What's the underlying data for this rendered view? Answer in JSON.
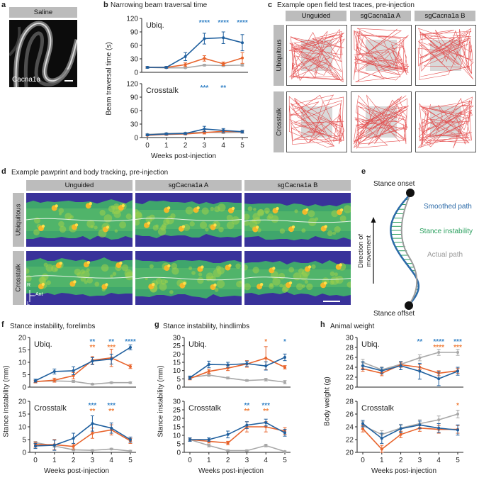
{
  "figure": {
    "panel_a": {
      "letter": "a",
      "header": "Saline",
      "image_label": "Cacna1a"
    },
    "panel_b": {
      "letter": "b",
      "title": "Narrowing beam traversal time",
      "ylabel": "Beam traversal time (s)",
      "xlabel": "Weeks post-injection"
    },
    "panel_c": {
      "letter": "c",
      "title": "Example open field test traces, pre-injection",
      "columns": [
        "Unguided",
        "sgCacna1a A",
        "sgCacna1a B"
      ],
      "rows": [
        "Ubiquitous",
        "Crosstalk"
      ]
    },
    "panel_d": {
      "letter": "d",
      "title": "Example pawprint and body tracking, pre-injection",
      "columns": [
        "Unguided",
        "sgCacna1a A",
        "sgCacna1a B"
      ],
      "rows": [
        "Ubiquitous",
        "Crosstalk"
      ],
      "compass": {
        "r": "R",
        "ant": "Ant",
        "l": "L"
      }
    },
    "panel_e": {
      "letter": "e",
      "stance_onset": "Stance onset",
      "smoothed_path": "Smoothed path",
      "stance_instability": "Stance instability",
      "actual_path": "Actual path",
      "stance_offset": "Stance offset",
      "direction": "Direction of movement"
    },
    "panel_f": {
      "letter": "f",
      "title": "Stance instability, forelimbs",
      "ylabel": "Stance instability (mm)",
      "xlabel": "Weeks post-injection"
    },
    "panel_g": {
      "letter": "g",
      "title": "Stance instability, hindlimbs",
      "ylabel": "Stance instability (mm)",
      "xlabel": "Weeks post-injection"
    },
    "panel_h": {
      "letter": "h",
      "title": "Animal weight",
      "ylabel": "Body weight (g)",
      "xlabel": "Weeks post-injection"
    }
  },
  "colors": {
    "blue": "#1f5f9e",
    "orange": "#e8632b",
    "gray": "#a8a8a8",
    "sig_blue": "#3a86c8",
    "sig_orange": "#f07f3c"
  },
  "chart_data": [
    {
      "id": "b_top",
      "type": "line",
      "subtitle": "Ubiq.",
      "x": [
        0,
        1,
        2,
        3,
        4,
        5
      ],
      "ylim": [
        0,
        120
      ],
      "yticks": [
        0,
        30,
        60,
        90,
        120
      ],
      "series": [
        {
          "name": "sgCacna1a A",
          "color": "blue",
          "values": [
            11,
            11,
            35,
            75,
            77,
            66
          ],
          "err": [
            2,
            2,
            9,
            12,
            13,
            18
          ]
        },
        {
          "name": "sgCacna1a B",
          "color": "orange",
          "values": [
            11,
            11,
            17,
            31,
            19,
            32
          ],
          "err": [
            1,
            2,
            4,
            6,
            4,
            12
          ]
        },
        {
          "name": "Unguided",
          "color": "gray",
          "values": [
            11,
            10,
            10,
            16,
            15,
            16
          ],
          "err": [
            1,
            1,
            1,
            2,
            2,
            2
          ]
        }
      ],
      "sig": [
        {
          "x": 3,
          "text": "****",
          "color": "sig_blue"
        },
        {
          "x": 4,
          "text": "****",
          "color": "sig_blue"
        },
        {
          "x": 5,
          "text": "****",
          "color": "sig_blue"
        }
      ]
    },
    {
      "id": "b_bottom",
      "type": "line",
      "subtitle": "Crosstalk",
      "x": [
        0,
        1,
        2,
        3,
        4,
        5
      ],
      "ylim": [
        0,
        120
      ],
      "yticks": [
        0,
        30,
        60,
        90,
        120
      ],
      "series": [
        {
          "name": "sgCacna1a A",
          "color": "blue",
          "values": [
            6,
            8,
            9,
            19,
            16,
            13
          ],
          "err": [
            2,
            2,
            2,
            6,
            4,
            3
          ]
        },
        {
          "name": "sgCacna1a B",
          "color": "orange",
          "values": [
            5,
            7,
            8,
            11,
            14,
            13
          ],
          "err": [
            1,
            2,
            2,
            3,
            3,
            3
          ]
        },
        {
          "name": "Unguided",
          "color": "gray",
          "values": [
            7,
            9,
            10,
            12,
            11,
            12
          ],
          "err": [
            1,
            1,
            1,
            2,
            2,
            2
          ]
        }
      ],
      "sig": [
        {
          "x": 3,
          "text": "***",
          "color": "sig_blue"
        },
        {
          "x": 4,
          "text": "**",
          "color": "sig_blue"
        }
      ]
    },
    {
      "id": "f_top",
      "type": "line",
      "subtitle": "Ubiq.",
      "x": [
        0,
        1,
        2,
        3,
        4,
        5
      ],
      "ylim": [
        0,
        20
      ],
      "yticks": [
        0,
        5,
        10,
        15,
        20
      ],
      "series": [
        {
          "name": "sgCacna1a A",
          "color": "blue",
          "values": [
            2.6,
            6.3,
            6.6,
            10.5,
            11.3,
            16
          ],
          "err": [
            0.6,
            1,
            1.6,
            1.4,
            2,
            1
          ]
        },
        {
          "name": "sgCacna1a B",
          "color": "orange",
          "values": [
            2.2,
            2.8,
            4.6,
            10.8,
            11.8,
            8.3
          ],
          "err": [
            0.5,
            0.8,
            1.3,
            1.5,
            3.5,
            0.8
          ]
        },
        {
          "name": "Unguided",
          "color": "gray",
          "values": [
            2.3,
            2.5,
            2.3,
            1.2,
            1.8,
            1.8
          ],
          "err": [
            0.4,
            0.4,
            0.4,
            0.3,
            0.3,
            0.3
          ]
        }
      ],
      "sig": [
        {
          "x": 3,
          "text": "**",
          "color": "sig_blue"
        },
        {
          "x": 3,
          "text": "**",
          "color": "sig_orange"
        },
        {
          "x": 4,
          "text": "**",
          "color": "sig_blue"
        },
        {
          "x": 4,
          "text": "***",
          "color": "sig_orange"
        },
        {
          "x": 5,
          "text": "****",
          "color": "sig_blue"
        }
      ]
    },
    {
      "id": "f_bottom",
      "type": "line",
      "subtitle": "Crosstalk",
      "x": [
        0,
        1,
        2,
        3,
        4,
        5
      ],
      "ylim": [
        0,
        20
      ],
      "yticks": [
        0,
        5,
        10,
        15,
        20
      ],
      "series": [
        {
          "name": "sgCacna1a A",
          "color": "blue",
          "values": [
            2.5,
            2.8,
            5.5,
            11.3,
            9.5,
            5
          ],
          "err": [
            1,
            2,
            2,
            3,
            2,
            1
          ]
        },
        {
          "name": "sgCacna1a B",
          "color": "orange",
          "values": [
            3,
            3,
            2.3,
            7.5,
            8.8,
            4.5
          ],
          "err": [
            1,
            2,
            1,
            2,
            2,
            1
          ]
        },
        {
          "name": "Unguided",
          "color": "gray",
          "values": [
            3.8,
            2.5,
            1,
            0.8,
            1.3,
            0.5
          ],
          "err": [
            0.5,
            0.5,
            0.4,
            0.3,
            0.3,
            0.3
          ]
        }
      ],
      "sig": [
        {
          "x": 3,
          "text": "***",
          "color": "sig_blue"
        },
        {
          "x": 3,
          "text": "**",
          "color": "sig_orange"
        },
        {
          "x": 4,
          "text": "***",
          "color": "sig_blue"
        },
        {
          "x": 4,
          "text": "**",
          "color": "sig_orange"
        }
      ]
    },
    {
      "id": "g_top",
      "type": "line",
      "subtitle": "Ubiq.",
      "x": [
        0,
        1,
        2,
        3,
        4,
        5
      ],
      "ylim": [
        0,
        30
      ],
      "yticks": [
        0,
        5,
        10,
        15,
        20,
        25,
        30
      ],
      "series": [
        {
          "name": "sgCacna1a A",
          "color": "blue",
          "values": [
            5.7,
            13.7,
            13.5,
            14.2,
            12.8,
            18
          ],
          "err": [
            1,
            2,
            1.5,
            1.5,
            2.5,
            2
          ]
        },
        {
          "name": "sgCacna1a B",
          "color": "orange",
          "values": [
            5.2,
            9.5,
            11.5,
            14,
            17.5,
            12
          ],
          "err": [
            0.8,
            1.2,
            1.5,
            2,
            7,
            1
          ]
        },
        {
          "name": "Unguided",
          "color": "gray",
          "values": [
            5.8,
            7.3,
            5.5,
            4,
            4.5,
            3
          ],
          "err": [
            0.6,
            0.8,
            0.6,
            0.5,
            0.8,
            1
          ]
        }
      ],
      "sig": [
        {
          "x": 4,
          "text": "*",
          "color": "sig_orange"
        },
        {
          "x": 5,
          "text": "*",
          "color": "sig_blue"
        }
      ]
    },
    {
      "id": "g_bottom",
      "type": "line",
      "subtitle": "Crosstalk",
      "x": [
        0,
        1,
        2,
        3,
        4,
        5
      ],
      "ylim": [
        0,
        30
      ],
      "yticks": [
        0,
        5,
        10,
        15,
        20,
        25,
        30
      ],
      "series": [
        {
          "name": "sgCacna1a A",
          "color": "blue",
          "values": [
            7.5,
            7.5,
            10.5,
            16,
            17.5,
            11.5
          ],
          "err": [
            1,
            1,
            2,
            2,
            2,
            2
          ]
        },
        {
          "name": "sgCacna1a B",
          "color": "orange",
          "values": [
            7.5,
            6.5,
            5.5,
            15,
            15,
            12.5
          ],
          "err": [
            1,
            1,
            1,
            3,
            3,
            2
          ]
        },
        {
          "name": "Unguided",
          "color": "gray",
          "values": [
            7.5,
            4,
            1,
            1,
            4,
            0.5
          ],
          "err": [
            0.8,
            0.8,
            0.5,
            0.5,
            0.8,
            0.3
          ]
        }
      ],
      "sig": [
        {
          "x": 3,
          "text": "**",
          "color": "sig_blue"
        },
        {
          "x": 3,
          "text": "**",
          "color": "sig_orange"
        },
        {
          "x": 4,
          "text": "***",
          "color": "sig_blue"
        },
        {
          "x": 4,
          "text": "**",
          "color": "sig_orange"
        }
      ]
    },
    {
      "id": "h_top",
      "type": "line",
      "subtitle": "Ubiq.",
      "x": [
        0,
        1,
        2,
        3,
        4,
        5
      ],
      "ylim": [
        20,
        30
      ],
      "yticks": [
        20,
        22,
        24,
        26,
        28,
        30
      ],
      "series": [
        {
          "name": "sgCacna1a A",
          "color": "blue",
          "values": [
            24.3,
            23.3,
            24.3,
            23.2,
            21.7,
            23.2
          ],
          "err": [
            0.8,
            0.6,
            0.8,
            1.6,
            1.4,
            0.8
          ]
        },
        {
          "name": "sgCacna1a B",
          "color": "orange",
          "values": [
            23.7,
            22.8,
            24.5,
            24,
            22.8,
            23.3
          ],
          "err": [
            0.5,
            0.5,
            0.5,
            0.5,
            0.5,
            0.5
          ]
        },
        {
          "name": "Unguided",
          "color": "gray",
          "values": [
            25,
            23.5,
            24.6,
            25.9,
            27,
            27
          ],
          "err": [
            0.6,
            0.6,
            0.6,
            0.6,
            0.6,
            0.6
          ]
        }
      ],
      "sig": [
        {
          "x": 3,
          "text": "**",
          "color": "sig_blue"
        },
        {
          "x": 4,
          "text": "****",
          "color": "sig_blue"
        },
        {
          "x": 4,
          "text": "****",
          "color": "sig_orange"
        },
        {
          "x": 5,
          "text": "***",
          "color": "sig_blue"
        },
        {
          "x": 5,
          "text": "***",
          "color": "sig_orange"
        }
      ]
    },
    {
      "id": "h_bottom",
      "type": "line",
      "subtitle": "Crosstalk",
      "x": [
        0,
        1,
        2,
        3,
        4,
        5
      ],
      "ylim": [
        20,
        28
      ],
      "yticks": [
        20,
        22,
        24,
        26,
        28
      ],
      "series": [
        {
          "name": "sgCacna1a A",
          "color": "blue",
          "values": [
            24.5,
            22.2,
            23.7,
            24.3,
            23.8,
            23.5
          ],
          "err": [
            0.5,
            0.8,
            0.6,
            0.6,
            0.7,
            0.8
          ]
        },
        {
          "name": "sgCacna1a B",
          "color": "orange",
          "values": [
            23.7,
            20.5,
            22.8,
            23.8,
            23.6,
            23.6
          ],
          "err": [
            0.5,
            0.6,
            0.5,
            0.5,
            0.6,
            0.6
          ]
        },
        {
          "name": "Unguided",
          "color": "gray",
          "values": [
            24.2,
            22.8,
            23.8,
            24.5,
            25.1,
            26
          ],
          "err": [
            0.6,
            0.6,
            0.6,
            0.6,
            0.6,
            0.6
          ]
        }
      ],
      "sig": [
        {
          "x": 5,
          "text": "*",
          "color": "sig_orange"
        }
      ]
    }
  ]
}
